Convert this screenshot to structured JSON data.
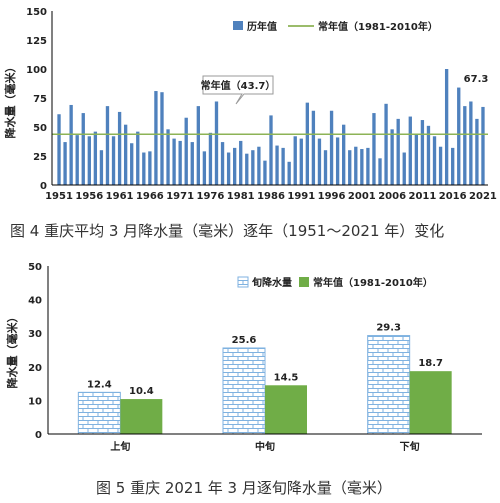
{
  "colors": {
    "bar_blue": "#4F81BD",
    "normal_line": "#8DB356",
    "brick": "#9DC3E6",
    "green_bar": "#70AD47",
    "axis": "#000000"
  },
  "chart_data": [
    {
      "type": "bar",
      "ylabel": "降水量（毫米）",
      "ylim": [
        0,
        150
      ],
      "yticks": [
        "0",
        "25",
        "50",
        "75",
        "100",
        "125",
        "150"
      ],
      "xticks": [
        "1951",
        "1956",
        "1961",
        "1966",
        "1971",
        "1976",
        "1981",
        "1986",
        "1991",
        "1996",
        "2001",
        "2006",
        "2011",
        "2016",
        "2021"
      ],
      "series": [
        {
          "name": "历年值",
          "x": [
            1951,
            1952,
            1953,
            1954,
            1955,
            1956,
            1957,
            1958,
            1959,
            1960,
            1961,
            1962,
            1963,
            1964,
            1965,
            1966,
            1967,
            1968,
            1969,
            1970,
            1971,
            1972,
            1973,
            1974,
            1975,
            1976,
            1977,
            1978,
            1979,
            1980,
            1981,
            1982,
            1983,
            1984,
            1985,
            1986,
            1987,
            1988,
            1989,
            1990,
            1991,
            1992,
            1993,
            1994,
            1995,
            1996,
            1997,
            1998,
            1999,
            2000,
            2001,
            2002,
            2003,
            2004,
            2005,
            2006,
            2007,
            2008,
            2009,
            2010,
            2011,
            2012,
            2013,
            2014,
            2015,
            2016,
            2017,
            2018,
            2019,
            2020,
            2021
          ],
          "values": [
            61,
            37,
            69,
            43,
            62,
            42,
            46,
            30,
            68,
            42,
            63,
            52,
            36,
            46,
            28,
            29,
            81,
            80,
            48,
            40,
            38,
            58,
            37,
            68,
            29,
            45,
            72,
            37,
            28,
            32,
            38,
            27,
            30,
            33,
            21,
            60,
            34,
            32,
            20,
            42,
            40,
            71,
            64,
            40,
            30,
            64,
            41,
            52,
            30,
            33,
            31,
            32,
            62,
            23,
            70,
            48,
            57,
            28,
            59,
            44,
            56,
            51,
            42,
            33,
            100,
            32,
            84,
            68,
            72,
            57,
            67.3
          ]
        }
      ],
      "normal": {
        "name": "常年值（1981-2010年）",
        "value": 43.7
      },
      "annotation": "常年值（43.7）",
      "last_value_label": "67.3",
      "caption": "图 4   重庆平均 3 月降水量（毫米）逐年（1951～2021 年）变化"
    },
    {
      "type": "bar",
      "ylabel": "降水量（毫米）",
      "ylim": [
        0,
        50
      ],
      "yticks": [
        "0",
        "10",
        "20",
        "30",
        "40",
        "50"
      ],
      "categories": [
        "上旬",
        "中旬",
        "下旬"
      ],
      "series": [
        {
          "name": "旬降水量",
          "values": [
            12.4,
            25.6,
            29.3
          ],
          "labels": [
            "12.4",
            "25.6",
            "29.3"
          ]
        },
        {
          "name": "常年值（1981-2010年）",
          "values": [
            10.4,
            14.5,
            18.7
          ],
          "labels": [
            "10.4",
            "14.5",
            "18.7"
          ]
        }
      ],
      "caption": "图 5    重庆 2021 年 3 月逐旬降水量（毫米）"
    }
  ]
}
